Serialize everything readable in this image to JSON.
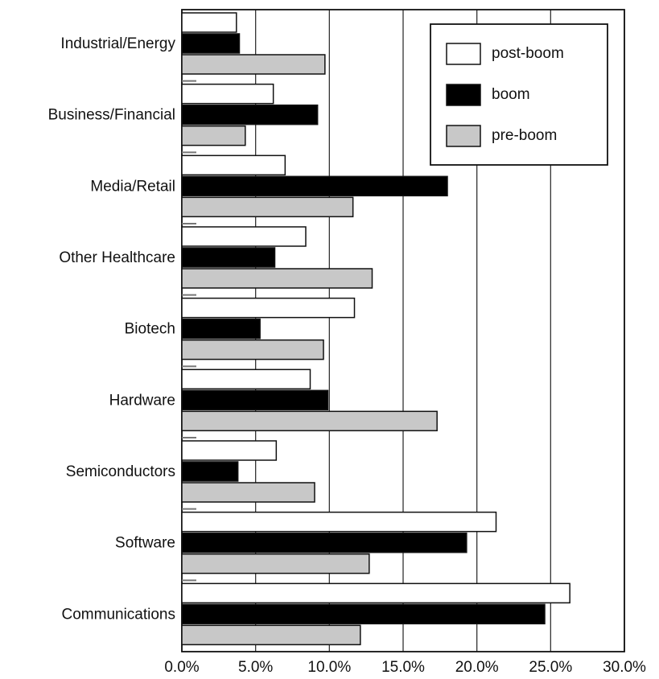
{
  "chart_data": {
    "type": "barh",
    "categories": [
      "Industrial/Energy",
      "Business/Financial",
      "Media/Retail",
      "Other Healthcare",
      "Biotech",
      "Hardware",
      "Semiconductors",
      "Software",
      "Communications"
    ],
    "series": [
      {
        "name": "post-boom",
        "color": "#ffffff",
        "values": [
          3.7,
          6.2,
          7.0,
          8.4,
          11.7,
          8.7,
          6.4,
          21.3,
          26.3
        ]
      },
      {
        "name": "boom",
        "color": "#000000",
        "values": [
          3.9,
          9.2,
          18.0,
          6.3,
          5.3,
          9.9,
          3.8,
          19.3,
          24.6
        ]
      },
      {
        "name": "pre-boom",
        "color": "#c8c8c8",
        "values": [
          9.7,
          4.3,
          11.6,
          12.9,
          9.6,
          17.3,
          9.0,
          12.7,
          12.1
        ]
      }
    ],
    "xlim": [
      0,
      30
    ],
    "xticks": [
      {
        "value": 0,
        "label": "0.0%"
      },
      {
        "value": 5,
        "label": "5.0%"
      },
      {
        "value": 10,
        "label": "10.0%"
      },
      {
        "value": 15,
        "label": "15.0%"
      },
      {
        "value": 20,
        "label": "20.0%"
      },
      {
        "value": 25,
        "label": "25.0%"
      },
      {
        "value": 30,
        "label": "30.0%"
      }
    ],
    "grid": true,
    "legend": "upper right"
  }
}
